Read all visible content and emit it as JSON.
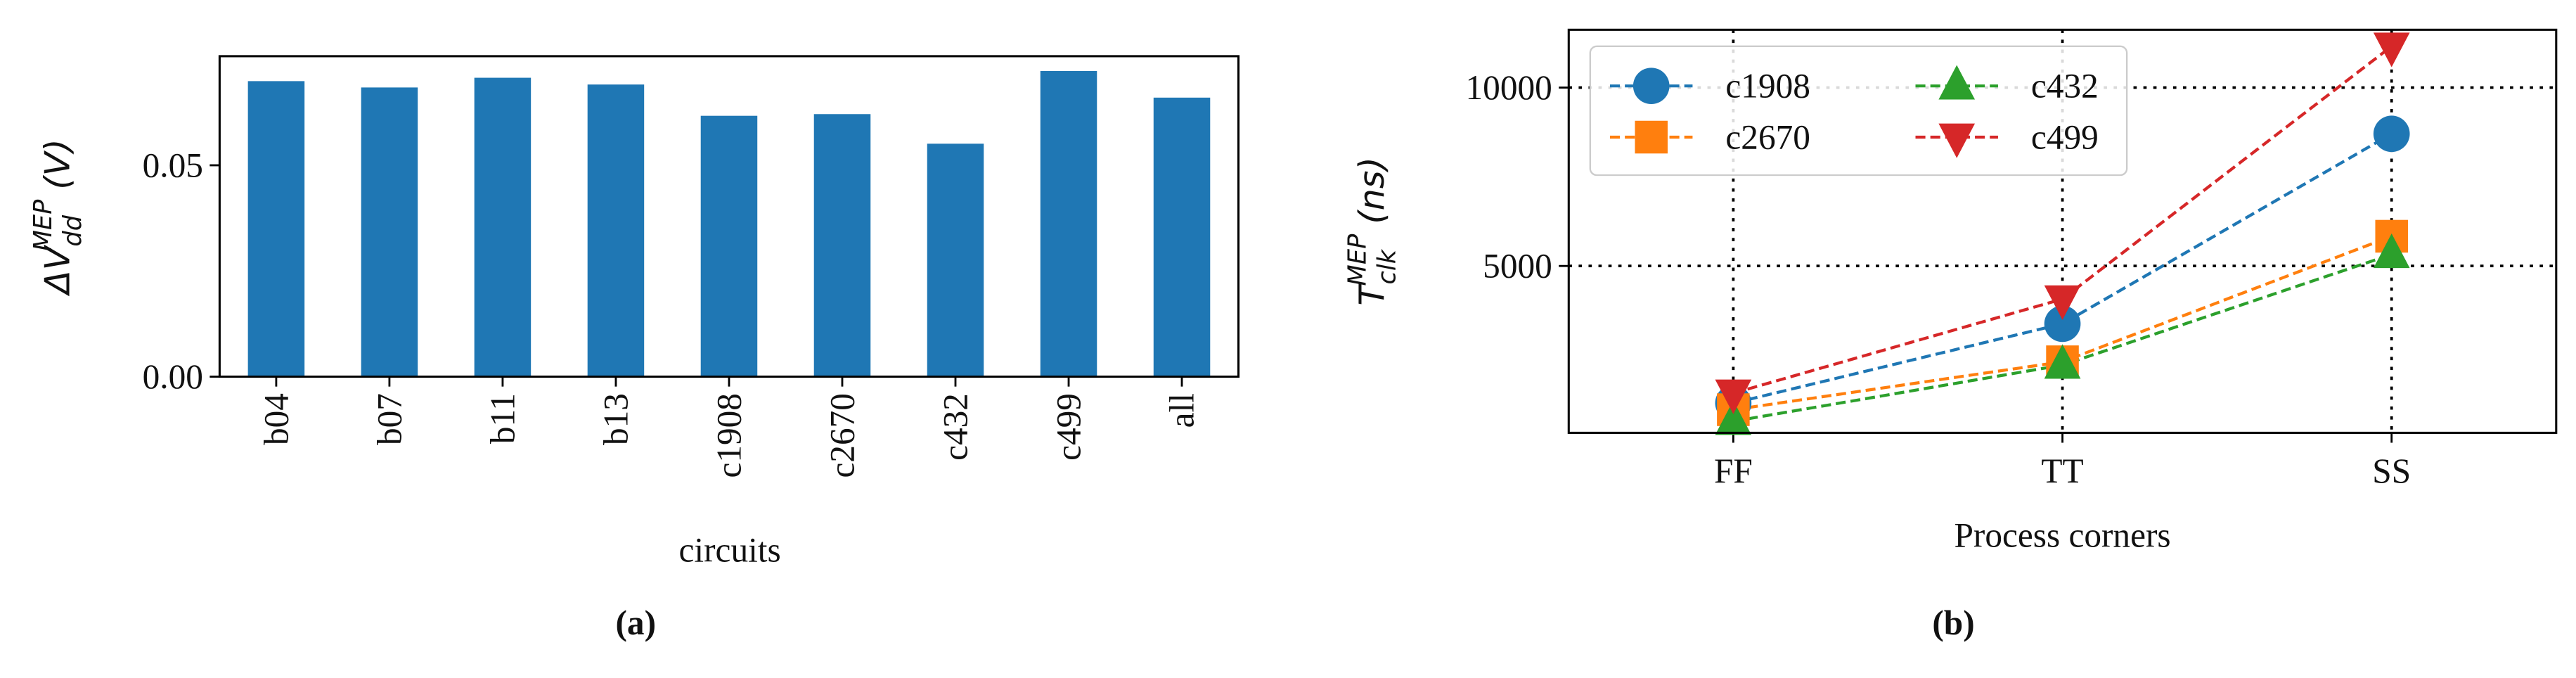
{
  "chart_data": [
    {
      "type": "bar",
      "ylabel": {
        "base": "ΔV",
        "sub": "dd",
        "sup": "MEP",
        "unit": "(V)"
      },
      "xlabel": "circuits",
      "caption": "(a)",
      "categories": [
        "b04",
        "b07",
        "b11",
        "b13",
        "c1908",
        "c2670",
        "c432",
        "c499",
        "all"
      ],
      "values": [
        0.0699,
        0.0684,
        0.0707,
        0.0691,
        0.0617,
        0.0621,
        0.0551,
        0.0723,
        0.066
      ],
      "color": "#1f77b4",
      "ylim": [
        0,
        0.0758
      ],
      "yticks": [
        {
          "value": 0,
          "label": "0.00"
        },
        0.05
      ]
    },
    {
      "type": "line",
      "ylabel": {
        "base": "T",
        "sub": "clk",
        "sup": "MEP",
        "unit": "(ns)"
      },
      "xlabel": "Process corners",
      "caption": "(b)",
      "categories": [
        "FF",
        "TT",
        "SS"
      ],
      "series": [
        {
          "name": "c1908",
          "color": "#1f77b4",
          "marker": "circle",
          "values": [
            1157,
            3380,
            8704
          ]
        },
        {
          "name": "c2670",
          "color": "#ff7f0e",
          "marker": "square",
          "values": [
            972,
            2315,
            5833
          ]
        },
        {
          "name": "c432",
          "color": "#2ca02c",
          "marker": "triangle-up",
          "values": [
            648,
            2222,
            5324
          ]
        },
        {
          "name": "c499",
          "color": "#d62728",
          "marker": "triangle-down",
          "values": [
            1435,
            4074,
            11157
          ]
        }
      ],
      "ylim": [
        324,
        11620
      ],
      "yticks": [
        5000,
        10000
      ],
      "grid": true,
      "legend": "upper left",
      "legend_columns": 2
    }
  ]
}
